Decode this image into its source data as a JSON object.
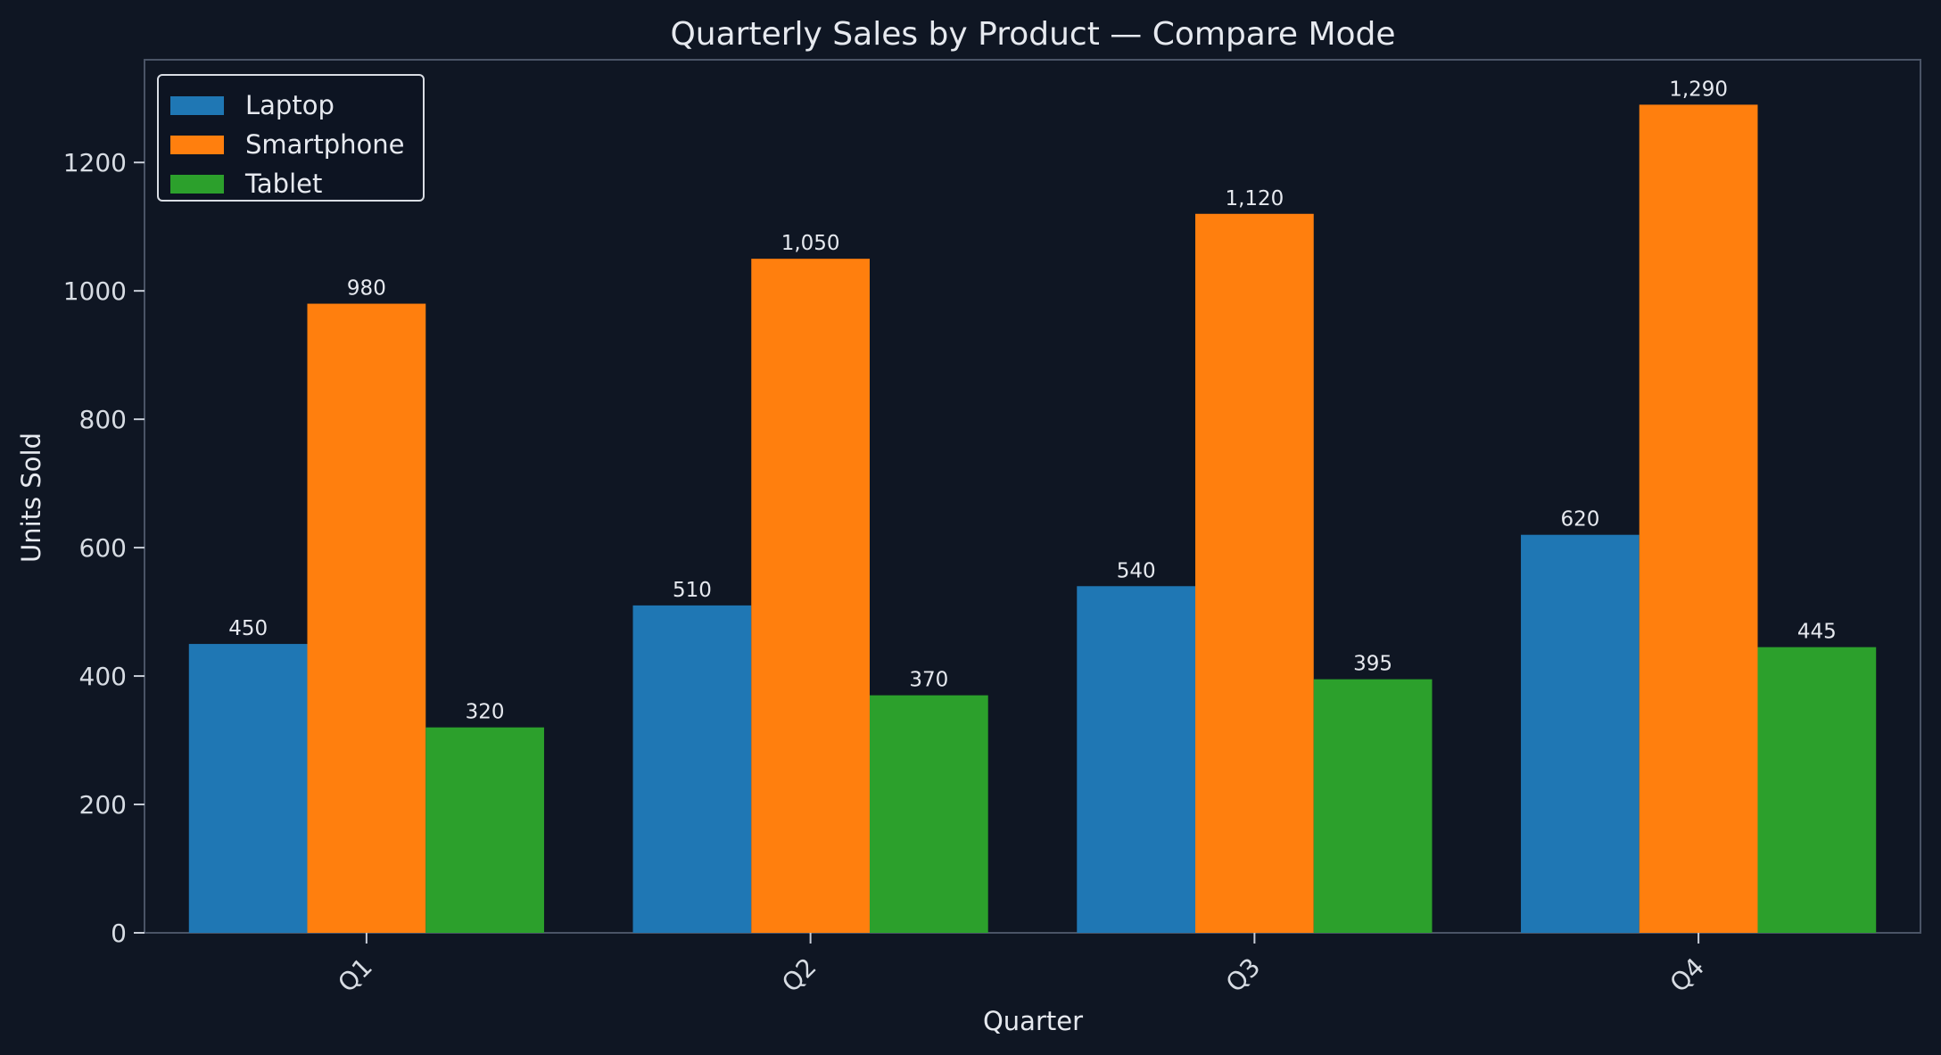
{
  "chart_data": {
    "type": "bar",
    "title": "Quarterly Sales by Product — Compare Mode",
    "xlabel": "Quarter",
    "ylabel": "Units Sold",
    "categories": [
      "Q1",
      "Q2",
      "Q3",
      "Q4"
    ],
    "series": [
      {
        "name": "Laptop",
        "values": [
          450,
          510,
          540,
          620
        ],
        "labels": [
          "450",
          "510",
          "540",
          "620"
        ],
        "color": "#1f77b4"
      },
      {
        "name": "Smartphone",
        "values": [
          980,
          1050,
          1120,
          1290
        ],
        "labels": [
          "980",
          "1,050",
          "1,120",
          "1,290"
        ],
        "color": "#ff7f0e"
      },
      {
        "name": "Tablet",
        "values": [
          320,
          370,
          395,
          445
        ],
        "labels": [
          "320",
          "370",
          "395",
          "445"
        ],
        "color": "#2ca02c"
      }
    ],
    "ylim": [
      0,
      1360
    ],
    "yticks": [
      0,
      200,
      400,
      600,
      800,
      1000,
      1200
    ],
    "ytick_labels": [
      "0",
      "200",
      "400",
      "600",
      "800",
      "1000",
      "1200"
    ],
    "grid": false,
    "legend_position": "top-left",
    "colors": {
      "background": "#0f1623",
      "frame": "#4a5466",
      "text": "#e6e9ef"
    }
  }
}
